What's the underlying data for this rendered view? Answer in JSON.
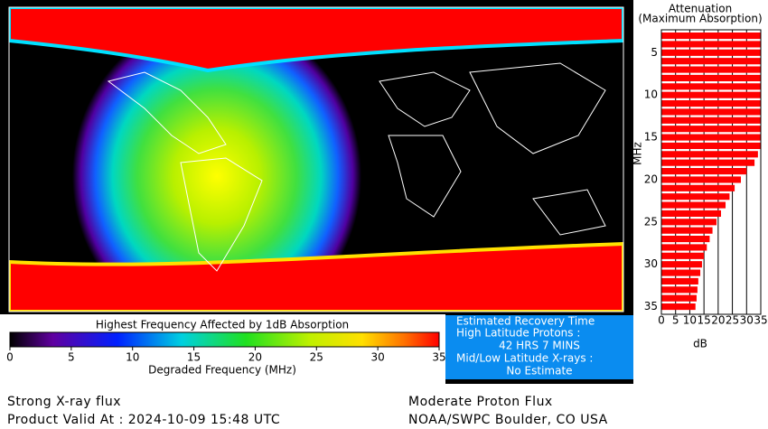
{
  "map": {
    "colorbar": {
      "title": "Highest Frequency Affected by 1dB Absorption",
      "xlabel": "Degraded Frequency (MHz)",
      "xlim": [
        0,
        35
      ],
      "xticks": [
        0,
        5,
        10,
        15,
        20,
        25,
        30,
        35
      ]
    }
  },
  "recovery": {
    "title": "Estimated Recovery Time",
    "high_label": "High Latitude Protons :",
    "high_value": "42 HRS 7 MINS",
    "low_label": "Mid/Low Latitude X-rays :",
    "low_value": "No Estimate"
  },
  "footer": {
    "left1": "Strong X-ray flux",
    "left2": "Product Valid At : 2024-10-09 15:48 UTC",
    "right1": "Moderate Proton Flux",
    "right2": "NOAA/SWPC Boulder, CO USA"
  },
  "chart_data": {
    "type": "bar",
    "orientation": "horizontal",
    "title": "Attenuation",
    "subtitle": "(Maximum Absorption)",
    "ylabel": "MHz",
    "xlabel": "dB",
    "color": "#ff0000",
    "categories": [
      3,
      4,
      5,
      6,
      7,
      8,
      9,
      10,
      11,
      12,
      13,
      14,
      15,
      16,
      17,
      18,
      19,
      20,
      21,
      22,
      23,
      24,
      25,
      26,
      27,
      28,
      29,
      30,
      31,
      32,
      33,
      34,
      35
    ],
    "values": [
      35,
      35,
      35,
      35,
      35,
      35,
      35,
      35,
      35,
      35,
      35,
      35,
      35,
      35,
      34,
      32.8,
      30,
      28,
      25.8,
      24,
      22.6,
      21,
      19.4,
      18,
      17,
      16,
      15,
      14.3,
      13.7,
      13,
      12.7,
      12.4,
      12
    ],
    "xlim": [
      0,
      35
    ],
    "xticks": [
      0,
      5,
      10,
      15,
      20,
      25,
      30,
      35
    ],
    "ylim": [
      2.3,
      35.9
    ],
    "yticks": [
      5,
      10,
      15,
      20,
      25,
      30,
      35
    ],
    "grid": true
  }
}
